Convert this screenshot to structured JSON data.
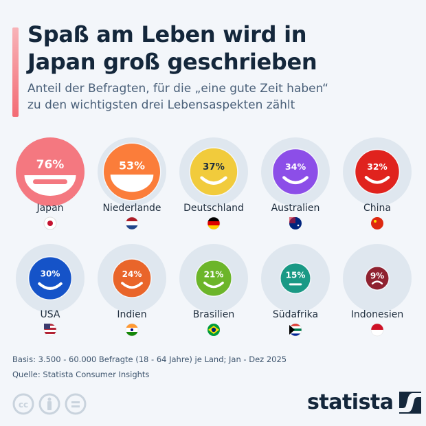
{
  "title": "Spaß am Leben wird in Japan groß geschrieben",
  "subtitle_line1": "Anteil der Befragten, für die „eine gute Zeit haben“",
  "subtitle_line2": "zu den wichtigsten drei Lebensaspekten zählt",
  "footer": {
    "basis": "Basis: 3.500 - 60.000 Befragte (18 - 64 Jahre) je Land; Jan - Dez 2025",
    "source": "Quelle: Statista Consumer Insights",
    "logo": "statista"
  },
  "chart_data": {
    "type": "bubble",
    "unit": "%",
    "categories": [
      "Japan",
      "Niederlande",
      "Deutschland",
      "Australien",
      "China",
      "USA",
      "Indien",
      "Brasilien",
      "Südafrika",
      "Indonesien"
    ],
    "values": [
      76,
      53,
      37,
      34,
      32,
      30,
      24,
      21,
      15,
      9
    ],
    "labels": [
      "76%",
      "53%",
      "37%",
      "34%",
      "32%",
      "30%",
      "24%",
      "21%",
      "15%",
      "9%"
    ],
    "colors": [
      "#f47880",
      "#fb7d3a",
      "#f1cb3c",
      "#8c4ee8",
      "#e0231e",
      "#1553c8",
      "#e9652a",
      "#6cb52a",
      "#1a9985",
      "#8f2230"
    ],
    "label_colors": [
      "#ffffff",
      "#ffffff",
      "#1e2d3d",
      "#ffffff",
      "#ffffff",
      "#ffffff",
      "#ffffff",
      "#ffffff",
      "#ffffff",
      "#ffffff"
    ],
    "mouths": [
      "grin",
      "grin",
      "smile",
      "smile",
      "smile",
      "smile",
      "smile",
      "smile",
      "flat",
      "frown"
    ],
    "flags": [
      "japan-flag",
      "netherlands-flag",
      "germany-flag",
      "australia-flag",
      "china-flag",
      "usa-flag",
      "india-flag",
      "brazil-flag",
      "south-africa-flag",
      "indonesia-flag"
    ]
  }
}
